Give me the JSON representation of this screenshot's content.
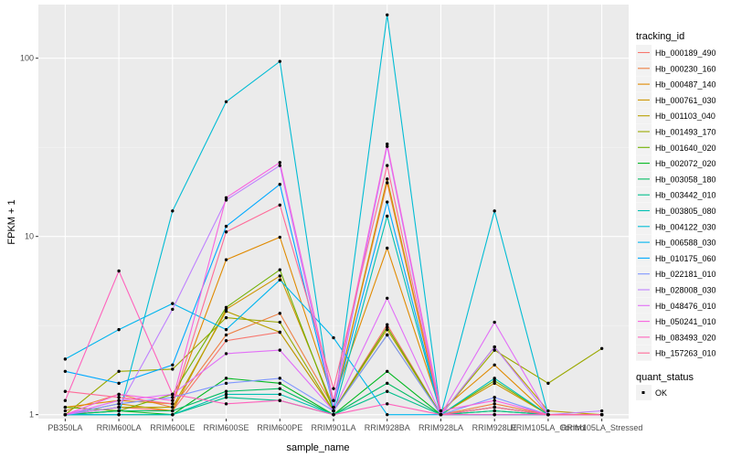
{
  "chart_data": {
    "type": "line",
    "title": "",
    "xlabel": "sample_name",
    "ylabel": "FPKM + 1",
    "y_scale": "log10",
    "ylim": [
      0.95,
      200
    ],
    "y_ticks": [
      1,
      10,
      100
    ],
    "y_tick_labels": [
      "1",
      "10",
      "100"
    ],
    "grid": true,
    "legend_position": "right",
    "categories": [
      "PB350LA",
      "RRIM600LA",
      "RRIM600LE",
      "RRIM600SE",
      "RRIM600PE",
      "RRIM901LA",
      "RRIM928BA",
      "RRIM928LA",
      "RRIM928LE",
      "RRIM105LA_Control",
      "RRIM105LA_Stressed"
    ],
    "colour_legend_title": "tracking_id",
    "series": [
      {
        "name": "Hb_000189_490",
        "color": "#F8766D",
        "values": [
          1.0,
          1.1,
          1.05,
          2.6,
          2.9,
          1.05,
          3.2,
          1.0,
          1.1,
          1.0,
          1.0
        ]
      },
      {
        "name": "Hb_000230_160",
        "color": "#EE8043",
        "values": [
          1.05,
          1.3,
          1.1,
          2.8,
          3.7,
          1.1,
          20.0,
          1.0,
          1.15,
          1.0,
          1.0
        ]
      },
      {
        "name": "Hb_000487_140",
        "color": "#E08A00",
        "values": [
          1.1,
          1.2,
          1.15,
          7.4,
          9.9,
          1.2,
          8.6,
          1.05,
          1.9,
          1.0,
          1.0
        ]
      },
      {
        "name": "Hb_000761_030",
        "color": "#CE9500",
        "values": [
          1.0,
          1.15,
          1.05,
          3.9,
          6.0,
          1.1,
          21.0,
          1.0,
          1.5,
          1.0,
          1.0
        ]
      },
      {
        "name": "Hb_001103_040",
        "color": "#B79F00",
        "values": [
          1.0,
          1.1,
          1.1,
          3.8,
          2.9,
          1.05,
          3.0,
          1.0,
          2.4,
          1.05,
          1.0
        ]
      },
      {
        "name": "Hb_001493_170",
        "color": "#9AA800",
        "values": [
          1.0,
          1.75,
          1.8,
          3.5,
          3.3,
          1.05,
          2.8,
          1.0,
          2.3,
          1.5,
          2.35
        ]
      },
      {
        "name": "Hb_001640_020",
        "color": "#70B000",
        "values": [
          1.1,
          1.05,
          1.3,
          4.0,
          6.5,
          1.05,
          3.1,
          1.0,
          1.55,
          1.0,
          1.0
        ]
      },
      {
        "name": "Hb_002072_020",
        "color": "#00B81F",
        "values": [
          1.0,
          1.05,
          1.0,
          1.6,
          1.5,
          1.0,
          1.75,
          1.0,
          1.05,
          1.0,
          1.0
        ]
      },
      {
        "name": "Hb_003058_180",
        "color": "#00BB61",
        "values": [
          1.0,
          1.05,
          1.05,
          1.35,
          1.4,
          1.0,
          1.5,
          1.0,
          1.1,
          1.0,
          1.0
        ]
      },
      {
        "name": "Hb_003442_010",
        "color": "#00BF8C",
        "values": [
          1.0,
          1.0,
          1.0,
          1.25,
          1.2,
          1.0,
          1.35,
          1.0,
          1.05,
          1.0,
          1.0
        ]
      },
      {
        "name": "Hb_003805_080",
        "color": "#00C0B2",
        "values": [
          1.0,
          1.0,
          1.0,
          1.3,
          1.3,
          1.0,
          13.0,
          1.0,
          1.6,
          1.0,
          1.0
        ]
      },
      {
        "name": "Hb_004122_030",
        "color": "#00BCD4",
        "values": [
          1.0,
          1.0,
          13.9,
          57.0,
          96.0,
          1.0,
          175.0,
          1.0,
          13.9,
          1.0,
          1.0
        ]
      },
      {
        "name": "Hb_006588_030",
        "color": "#00B5EE",
        "values": [
          2.05,
          3.0,
          4.2,
          3.0,
          5.7,
          2.7,
          1.0,
          1.0,
          1.0,
          1.0,
          1.0
        ]
      },
      {
        "name": "Hb_010175_060",
        "color": "#00A9FF",
        "values": [
          1.75,
          1.5,
          1.9,
          11.4,
          19.6,
          1.1,
          15.6,
          1.0,
          1.0,
          1.0,
          1.0
        ]
      },
      {
        "name": "Hb_022181_010",
        "color": "#7F96FF",
        "values": [
          1.0,
          1.15,
          1.25,
          1.5,
          1.6,
          1.05,
          2.8,
          1.0,
          1.25,
          1.0,
          1.0
        ]
      },
      {
        "name": "Hb_028008_030",
        "color": "#BF80FF",
        "values": [
          1.0,
          1.1,
          3.9,
          16.0,
          25.0,
          1.1,
          32.0,
          1.0,
          2.4,
          1.0,
          1.05
        ]
      },
      {
        "name": "Hb_048476_010",
        "color": "#E26EF7",
        "values": [
          1.0,
          1.2,
          1.3,
          2.2,
          2.3,
          1.05,
          4.5,
          1.0,
          3.3,
          1.0,
          1.0
        ]
      },
      {
        "name": "Hb_050241_010",
        "color": "#F863DF",
        "values": [
          1.0,
          1.3,
          1.2,
          16.5,
          26.0,
          1.2,
          33.0,
          1.05,
          1.2,
          1.0,
          1.0
        ]
      },
      {
        "name": "Hb_083493_020",
        "color": "#FF62BC",
        "values": [
          1.2,
          6.4,
          1.3,
          1.15,
          1.2,
          1.0,
          1.15,
          1.0,
          1.0,
          1.0,
          1.0
        ]
      },
      {
        "name": "Hb_157263_010",
        "color": "#FF6A98",
        "values": [
          1.35,
          1.25,
          1.15,
          10.6,
          15.0,
          1.4,
          25.0,
          1.0,
          1.1,
          1.0,
          1.0
        ]
      }
    ],
    "shape_legend": {
      "title": "quant_status",
      "items": [
        "OK"
      ]
    }
  }
}
